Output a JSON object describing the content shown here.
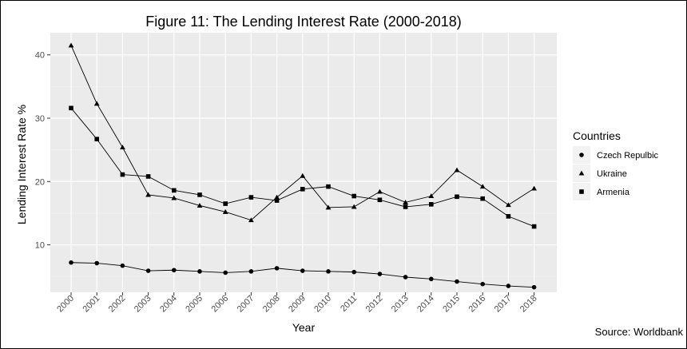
{
  "chart_data": {
    "type": "line",
    "title": "Figure 11: The Lending Interest Rate (2000-2018)",
    "xlabel": "Year",
    "ylabel": "Lending Interest Rate %",
    "x": [
      "2000",
      "2001",
      "2002",
      "2003",
      "2004",
      "2005",
      "2006",
      "2007",
      "2008",
      "2009",
      "2010",
      "2011",
      "2012",
      "2013",
      "2014",
      "2015",
      "2016",
      "2017",
      "2018"
    ],
    "yticks": [
      10,
      20,
      30,
      40
    ],
    "ylim": [
      2.5,
      43.5
    ],
    "grid": true,
    "legend": {
      "title": "Countries",
      "position": "right"
    },
    "series": [
      {
        "name": "Czech Repulbic",
        "marker": "circle",
        "values": [
          7.2,
          7.1,
          6.7,
          5.9,
          6.0,
          5.8,
          5.6,
          5.8,
          6.3,
          5.9,
          5.8,
          5.7,
          5.4,
          4.9,
          4.6,
          4.2,
          3.8,
          3.5,
          3.3
        ]
      },
      {
        "name": "Ukraine",
        "marker": "triangle",
        "values": [
          41.5,
          32.3,
          25.4,
          17.9,
          17.4,
          16.2,
          15.2,
          13.9,
          17.5,
          20.9,
          15.9,
          16.0,
          18.4,
          16.7,
          17.7,
          21.8,
          19.2,
          16.3,
          18.9
        ]
      },
      {
        "name": "Armenia",
        "marker": "square",
        "values": [
          31.6,
          26.7,
          21.1,
          20.8,
          18.6,
          17.9,
          16.5,
          17.5,
          17.0,
          18.8,
          19.2,
          17.7,
          17.1,
          16.0,
          16.4,
          17.6,
          17.3,
          14.5,
          12.9
        ]
      }
    ]
  },
  "source_note": "Source: Worldbank"
}
